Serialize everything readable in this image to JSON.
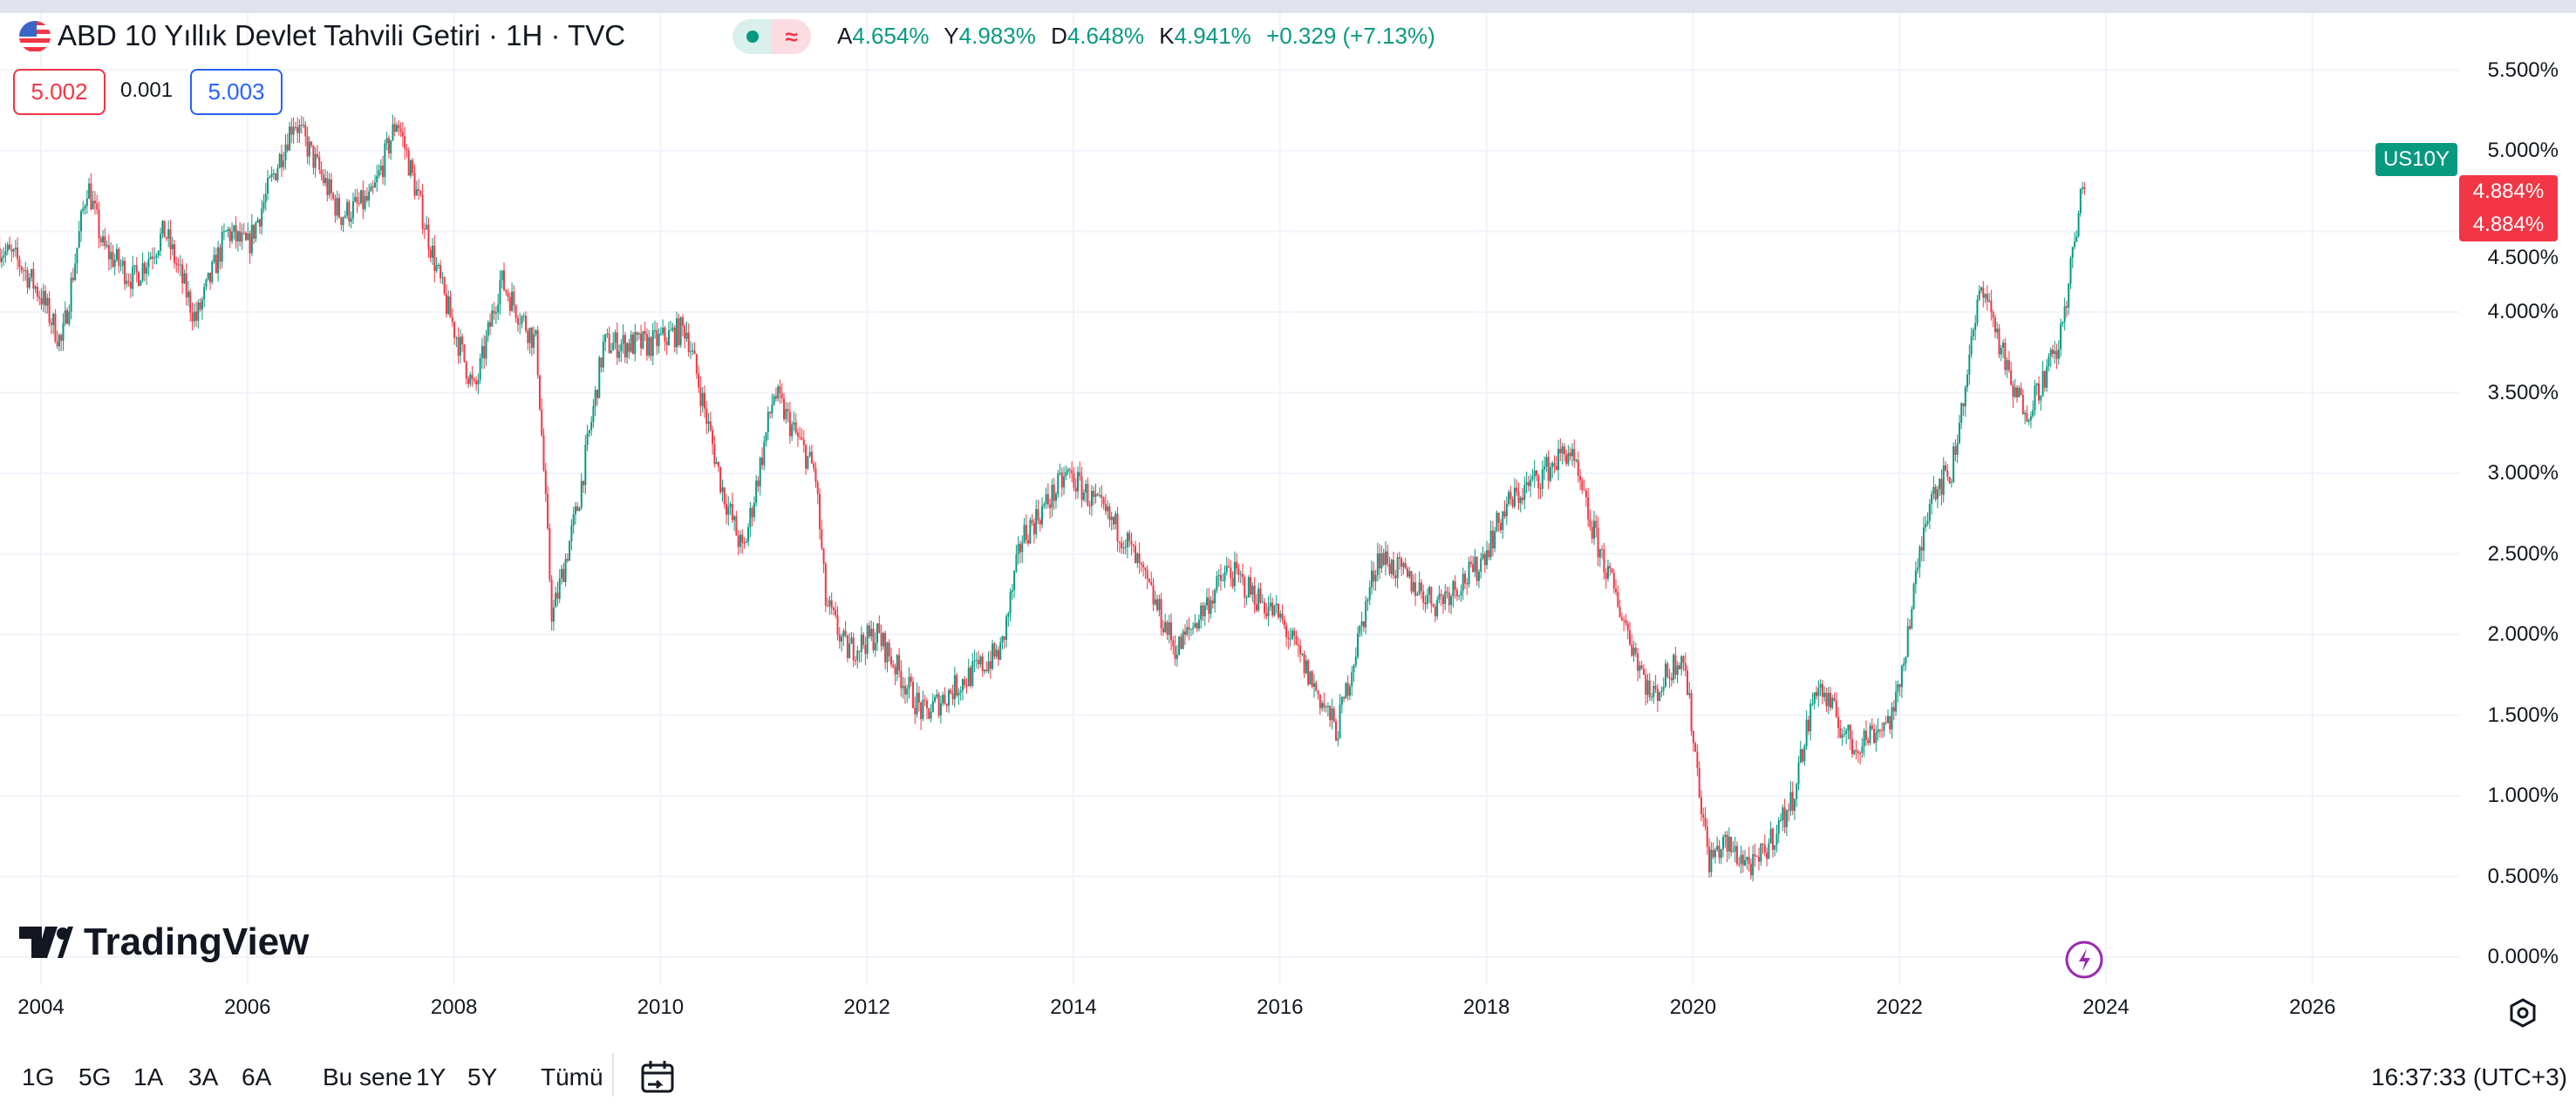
{
  "header": {
    "title": "ABD 10 Yıllık Devlet Tahvili Getiri · 1H · TVC",
    "market_status_icon": "green-dot",
    "delay_icon": "≈",
    "ohlc": [
      {
        "k": "A",
        "v": "4.654%"
      },
      {
        "k": "Y",
        "v": "4.983%"
      },
      {
        "k": "D",
        "v": "4.648%"
      },
      {
        "k": "K",
        "v": "4.941%"
      }
    ],
    "change": "+0.329 (+7.13%)"
  },
  "trade": {
    "sell": "5.002",
    "spread": "0.001",
    "buy": "5.003"
  },
  "price_axis": {
    "symbol_tag": "US10Y",
    "last_price": "4.884%",
    "last_price2": "4.884%"
  },
  "logo": "TradingView",
  "toolbar": {
    "ranges": [
      "1G",
      "5G",
      "1A",
      "3A",
      "6A",
      "Bu sene",
      "1Y",
      "5Y",
      "Tümü"
    ],
    "time": "16:37:33 (UTC+3)"
  },
  "colors": {
    "up": "#089981",
    "down": "#F23645",
    "accent": "#2962FF"
  },
  "chart_data": {
    "type": "candlestick",
    "title": "ABD 10 Yıllık Devlet Tahvili Getiri",
    "xlabel": "",
    "ylabel": "",
    "ylim": [
      0,
      5.5
    ],
    "xlim": [
      2003.6,
      2027.4
    ],
    "y_ticks": [
      "0.000%",
      "0.500%",
      "1.000%",
      "1.500%",
      "2.000%",
      "2.500%",
      "3.000%",
      "3.500%",
      "4.000%",
      "4.500%",
      "5.000%",
      "5.500%"
    ],
    "x_ticks": [
      "2004",
      "2006",
      "2008",
      "2010",
      "2012",
      "2014",
      "2016",
      "2018",
      "2020",
      "2022",
      "2024",
      "2026"
    ],
    "approx_close_path": {
      "t": [
        2003.6,
        2003.8,
        2004.0,
        2004.2,
        2004.45,
        2004.6,
        2004.9,
        2005.2,
        2005.5,
        2005.8,
        2006.0,
        2006.45,
        2006.9,
        2007.2,
        2007.45,
        2007.9,
        2008.2,
        2008.45,
        2008.8,
        2008.95,
        2009.2,
        2009.45,
        2009.9,
        2010.25,
        2010.6,
        2010.8,
        2011.1,
        2011.5,
        2011.6,
        2011.8,
        2012.1,
        2012.55,
        2012.9,
        2013.3,
        2013.5,
        2013.95,
        2014.5,
        2015.0,
        2015.5,
        2016.0,
        2016.55,
        2016.95,
        2017.5,
        2017.9,
        2018.2,
        2018.8,
        2019.0,
        2019.6,
        2019.9,
        2020.15,
        2020.3,
        2020.6,
        2020.95,
        2021.2,
        2021.55,
        2021.95,
        2022.3,
        2022.5,
        2022.8,
        2023.1,
        2023.25,
        2023.55,
        2023.8
      ],
      "v": [
        4.4,
        4.3,
        4.1,
        3.8,
        4.8,
        4.4,
        4.2,
        4.5,
        3.95,
        4.5,
        4.4,
        5.2,
        4.6,
        4.7,
        5.2,
        4.1,
        3.5,
        4.2,
        3.8,
        2.1,
        2.8,
        3.8,
        3.8,
        3.9,
        2.9,
        2.5,
        3.5,
        3.0,
        2.2,
        1.9,
        2.0,
        1.5,
        1.7,
        1.9,
        2.6,
        3.0,
        2.6,
        1.9,
        2.4,
        2.1,
        1.4,
        2.5,
        2.2,
        2.4,
        2.8,
        3.15,
        2.7,
        1.6,
        1.9,
        0.6,
        0.7,
        0.55,
        0.95,
        1.7,
        1.3,
        1.5,
        2.9,
        3.0,
        4.2,
        3.5,
        3.4,
        3.8,
        4.88
      ]
    }
  }
}
